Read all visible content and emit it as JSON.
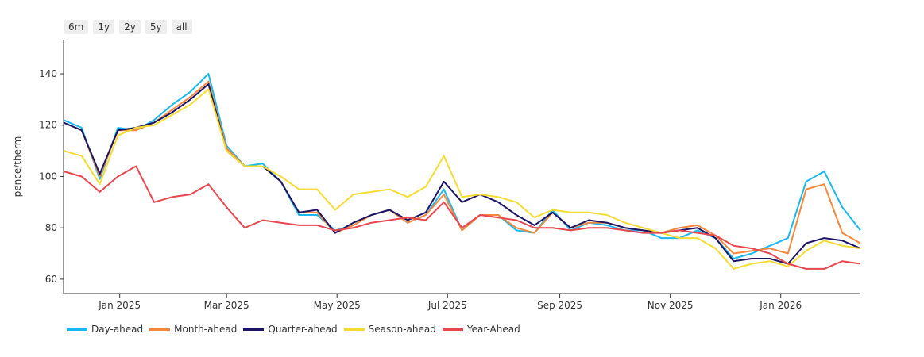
{
  "range_buttons": [
    "6m",
    "1y",
    "2y",
    "5y",
    "all"
  ],
  "chart_data": {
    "type": "line",
    "ylabel": "pence/therm",
    "ylim": [
      54.4,
      153.3
    ],
    "yticks": [
      60,
      80,
      100,
      120,
      140
    ],
    "xlim": [
      "2024-12-01",
      "2026-02-14"
    ],
    "xticks": [
      {
        "date": "2025-01-01",
        "label": "Jan 2025"
      },
      {
        "date": "2025-03-01",
        "label": "Mar 2025"
      },
      {
        "date": "2025-05-01",
        "label": "May 2025"
      },
      {
        "date": "2025-07-01",
        "label": "Jul 2025"
      },
      {
        "date": "2025-09-01",
        "label": "Sep 2025"
      },
      {
        "date": "2025-11-01",
        "label": "Nov 2025"
      },
      {
        "date": "2026-01-01",
        "label": "Jan 2026"
      }
    ],
    "legend_position": "bottom-left",
    "x": [
      "2024-12-01",
      "2024-12-11",
      "2024-12-21",
      "2024-12-31",
      "2025-01-10",
      "2025-01-20",
      "2025-01-30",
      "2025-02-09",
      "2025-02-19",
      "2025-03-01",
      "2025-03-11",
      "2025-03-21",
      "2025-03-31",
      "2025-04-10",
      "2025-04-20",
      "2025-04-30",
      "2025-05-10",
      "2025-05-20",
      "2025-05-30",
      "2025-06-09",
      "2025-06-19",
      "2025-06-29",
      "2025-07-09",
      "2025-07-19",
      "2025-07-29",
      "2025-08-08",
      "2025-08-18",
      "2025-08-28",
      "2025-09-07",
      "2025-09-17",
      "2025-09-27",
      "2025-10-07",
      "2025-10-17",
      "2025-10-27",
      "2025-11-06",
      "2025-11-16",
      "2025-11-26",
      "2025-12-06",
      "2025-12-16",
      "2025-12-26",
      "2026-01-05",
      "2026-01-15",
      "2026-01-25",
      "2026-02-04",
      "2026-02-14"
    ],
    "series": [
      {
        "name": "Day-ahead",
        "color": "#1ab8f0",
        "values": [
          122,
          119,
          99,
          119,
          118,
          122,
          128,
          133,
          140,
          112,
          104,
          105,
          98,
          85,
          85,
          79,
          81,
          85,
          87,
          82,
          85,
          95,
          79,
          85,
          85,
          79,
          78,
          87,
          79,
          82,
          81,
          79,
          79,
          76,
          76,
          79,
          76,
          68,
          70,
          73,
          76,
          98,
          102,
          88,
          79
        ]
      },
      {
        "name": "Month-ahead",
        "color": "#f5883c",
        "values": [
          121,
          118,
          100,
          118,
          118,
          121,
          126,
          131,
          137,
          111,
          104,
          104,
          98,
          86,
          86,
          78,
          81,
          85,
          87,
          82,
          85,
          93,
          79,
          85,
          85,
          80,
          78,
          86,
          80,
          82,
          82,
          80,
          79,
          78,
          80,
          81,
          77,
          70,
          71,
          72,
          70,
          95,
          97,
          78,
          74
        ]
      },
      {
        "name": "Quarter-ahead",
        "color": "#1c1464",
        "values": [
          121,
          118,
          101,
          118,
          119,
          121,
          125,
          130,
          136,
          110,
          104,
          104,
          98,
          86,
          87,
          78,
          82,
          85,
          87,
          83,
          86,
          98,
          90,
          93,
          90,
          85,
          81,
          86,
          80,
          83,
          82,
          80,
          79,
          78,
          79,
          80,
          76,
          67,
          68,
          68,
          66,
          74,
          76,
          75,
          72
        ]
      },
      {
        "name": "Season-ahead",
        "color": "#f5dc32",
        "values": [
          110,
          108,
          97,
          116,
          119,
          120,
          124,
          128,
          134,
          110,
          104,
          104,
          100,
          95,
          95,
          87,
          93,
          94,
          95,
          92,
          96,
          108,
          92,
          93,
          92,
          90,
          84,
          87,
          86,
          86,
          85,
          82,
          80,
          78,
          76,
          76,
          72,
          64,
          66,
          67,
          65,
          71,
          75,
          73,
          72
        ]
      },
      {
        "name": "Year-Ahead",
        "color": "#e8474f",
        "values": [
          102,
          100,
          94,
          100,
          104,
          90,
          92,
          93,
          97,
          88,
          80,
          83,
          82,
          81,
          81,
          79,
          80,
          82,
          83,
          84,
          83,
          90,
          80,
          85,
          84,
          83,
          80,
          80,
          79,
          80,
          80,
          79,
          78,
          78,
          79,
          78,
          77,
          73,
          72,
          70,
          66,
          64,
          64,
          67,
          66
        ]
      }
    ]
  }
}
